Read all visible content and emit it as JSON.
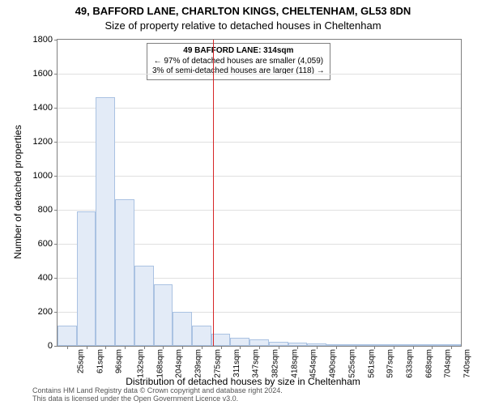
{
  "title": "49, BAFFORD LANE, CHARLTON KINGS, CHELTENHAM, GL53 8DN",
  "subtitle": "Size of property relative to detached houses in Cheltenham",
  "y_axis_label": "Number of detached properties",
  "x_axis_label": "Distribution of detached houses by size in Cheltenham",
  "footer_line1": "Contains HM Land Registry data © Crown copyright and database right 2024.",
  "footer_line2": "This data is licensed under the Open Government Licence v3.0.",
  "chart": {
    "type": "histogram",
    "background_color": "#ffffff",
    "grid_color": "#e0e0e0",
    "axis_color": "#7f7f7f",
    "bar_fill": "#e3ebf7",
    "bar_border": "#aac2e2",
    "marker_color": "#d62728",
    "y_max": 1800,
    "y_tick_step": 200,
    "y_ticks": [
      0,
      200,
      400,
      600,
      800,
      1000,
      1200,
      1400,
      1600,
      1800
    ],
    "x_ticks": [
      "25sqm",
      "61sqm",
      "96sqm",
      "132sqm",
      "168sqm",
      "204sqm",
      "239sqm",
      "275sqm",
      "311sqm",
      "347sqm",
      "382sqm",
      "418sqm",
      "454sqm",
      "490sqm",
      "525sqm",
      "561sqm",
      "597sqm",
      "633sqm",
      "668sqm",
      "704sqm",
      "740sqm"
    ],
    "values": [
      120,
      790,
      1460,
      860,
      470,
      360,
      200,
      120,
      70,
      50,
      40,
      25,
      20,
      15,
      10,
      10,
      8,
      5,
      5,
      3,
      3
    ],
    "marker_index": 8,
    "marker_value": 314,
    "tick_fontsize": 11,
    "title_fontsize": 13,
    "label_fontsize": 12
  },
  "legend": {
    "line1": "49 BAFFORD LANE: 314sqm",
    "line2": "← 97% of detached houses are smaller (4,059)",
    "line3": "3% of semi-detached houses are larger (118) →"
  }
}
